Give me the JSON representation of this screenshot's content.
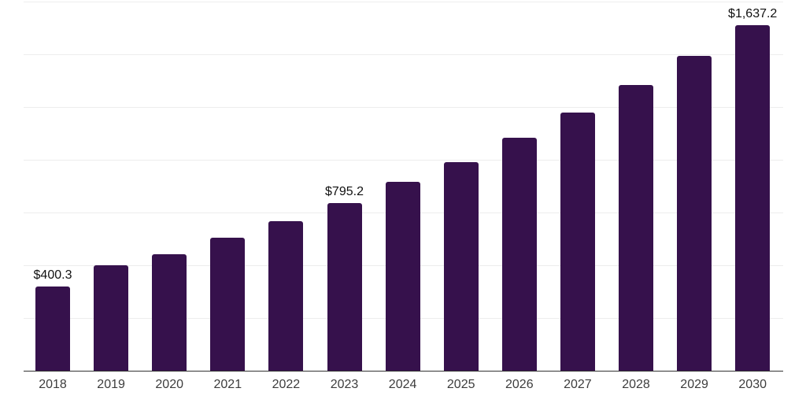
{
  "chart_data": {
    "type": "bar",
    "title": "",
    "xlabel": "",
    "ylabel": "",
    "categories": [
      "2018",
      "2019",
      "2020",
      "2021",
      "2022",
      "2023",
      "2024",
      "2025",
      "2026",
      "2027",
      "2028",
      "2029",
      "2030"
    ],
    "values": [
      400.3,
      500,
      553,
      632,
      709,
      795.2,
      894,
      990,
      1103,
      1225,
      1353,
      1494,
      1637.2
    ],
    "labeled_points": [
      {
        "category": "2018",
        "label": "$400.3"
      },
      {
        "category": "2023",
        "label": "$795.2"
      },
      {
        "category": "2030",
        "label": "$1,637.2"
      }
    ],
    "ylim": [
      0,
      1750
    ],
    "gridline_step": 250,
    "grid": true,
    "legend": false,
    "colors": {
      "bar": "#36114C",
      "value_label": "#111111",
      "tick_label": "#3D3D3D",
      "axis_line": "#333333",
      "gridline": "#EDEDED",
      "background": "#FFFFFF"
    }
  }
}
